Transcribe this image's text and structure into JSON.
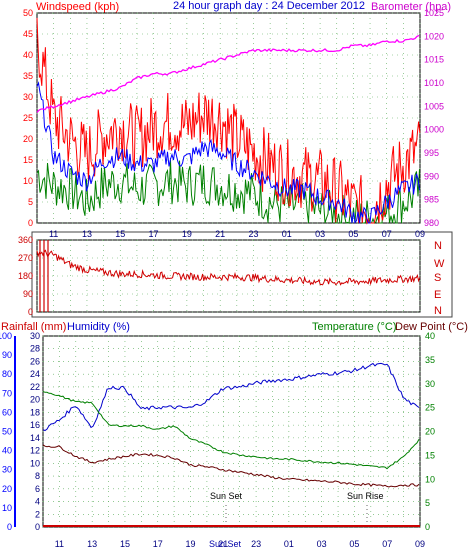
{
  "header": {
    "windspeed_label": "Windspeed (kph)",
    "title": "24 hour graph day : 24 December 2012",
    "barometer_label": "Barometer (hpa)"
  },
  "direction_labels": [
    "N",
    "W",
    "S",
    "E",
    "N"
  ],
  "bottom_header": {
    "rainfall_label": "Rainfall (mm)",
    "humidity_label": "Humidity (%)",
    "temperature_label": "Temperature (°C)",
    "dewpoint_label": "Dew Point (°C)"
  },
  "annotations": {
    "sunset": "Sun Set",
    "sunrise": "Sun Rise"
  },
  "colors": {
    "wind": "#ff0000",
    "gust": "#ff0000",
    "wind_avg": "#0000ff",
    "wind_low": "#008000",
    "barometer": "#ff00ff",
    "direction": "#d00000",
    "humidity": "#0000cc",
    "temperature": "#008000",
    "dewpoint": "#660000",
    "rainfall": "#cc0000",
    "rain_axis": "#0000ff",
    "temp_axis": "#008000"
  },
  "chart_data": [
    {
      "type": "line",
      "title": "24 hour graph day : 24 December 2012",
      "xlabel": "",
      "ylabel": "Windspeed (kph)",
      "y2label": "Barometer (hpa)",
      "ylim": [
        0,
        50
      ],
      "y2lim": [
        980,
        1025
      ],
      "grid": true,
      "x": [
        "10",
        "11",
        "12",
        "13",
        "14",
        "15",
        "16",
        "17",
        "18",
        "19",
        "20",
        "21",
        "22",
        "23",
        "00",
        "01",
        "02",
        "03",
        "04",
        "05",
        "06",
        "07",
        "08",
        "09"
      ],
      "tick_labels": [
        "11",
        "13",
        "15",
        "17",
        "19",
        "21",
        "23",
        "01",
        "03",
        "05",
        "07",
        "09"
      ],
      "series": [
        {
          "name": "Windspeed (kph)",
          "axis": "left",
          "values": [
            44,
            25,
            20,
            16,
            21,
            23,
            20,
            23,
            24,
            23,
            26,
            25,
            20,
            17,
            14,
            12,
            11,
            10,
            8,
            4,
            3,
            9,
            14,
            18
          ]
        },
        {
          "name": "",
          "axis": "left",
          "values": [
            33,
            16,
            12,
            10,
            15,
            16,
            14,
            14,
            16,
            15,
            18,
            17,
            14,
            12,
            10,
            8,
            8,
            6,
            5,
            2,
            1,
            5,
            8,
            10
          ]
        },
        {
          "name": "",
          "axis": "left",
          "values": [
            12,
            9,
            8,
            5,
            9,
            10,
            8,
            9,
            10,
            9,
            10,
            9,
            8,
            7,
            5,
            4,
            4,
            3,
            2,
            1,
            1,
            2,
            5,
            8
          ]
        },
        {
          "name": "Barometer (hpa)",
          "axis": "right",
          "values": [
            1004,
            1005,
            1006,
            1007,
            1008,
            1009,
            1011,
            1012,
            1012,
            1013,
            1014,
            1015,
            1016,
            1017,
            1017,
            1017,
            1017,
            1017,
            1017,
            1018,
            1018,
            1019,
            1019,
            1020
          ]
        }
      ]
    },
    {
      "type": "line",
      "ylabel": "",
      "ylim": [
        0,
        360
      ],
      "yticks": [
        0,
        90,
        180,
        270,
        360
      ],
      "labels": [
        "N",
        "W",
        "S",
        "E",
        "N"
      ],
      "x": [
        "10",
        "11",
        "12",
        "13",
        "14",
        "15",
        "16",
        "17",
        "18",
        "19",
        "20",
        "21",
        "22",
        "23",
        "00",
        "01",
        "02",
        "03",
        "04",
        "05",
        "06",
        "07",
        "08",
        "09"
      ],
      "series": [
        {
          "name": "",
          "values": [
            300,
            285,
            235,
            210,
            200,
            190,
            190,
            185,
            180,
            178,
            175,
            176,
            175,
            172,
            165,
            160,
            155,
            150,
            150,
            152,
            155,
            160,
            165,
            168
          ]
        }
      ]
    },
    {
      "type": "line",
      "xlabel": "",
      "ylim": [
        0,
        30
      ],
      "y_rain_lim": [
        0,
        100
      ],
      "y_temp_lim": [
        0,
        40
      ],
      "grid": true,
      "x": [
        "10",
        "11",
        "12",
        "13",
        "14",
        "15",
        "16",
        "17",
        "18",
        "19",
        "20",
        "21",
        "22",
        "23",
        "00",
        "01",
        "02",
        "03",
        "04",
        "05",
        "06",
        "07",
        "08",
        "09"
      ],
      "tick_labels": [
        "11",
        "13",
        "15",
        "17",
        "19",
        "21",
        "23",
        "01",
        "03",
        "05",
        "07",
        "09"
      ],
      "series": [
        {
          "name": "Humidity (%)",
          "axis": "humidity",
          "values": [
            15.2,
            16.8,
            19.2,
            15.5,
            22.0,
            21.8,
            18.5,
            18.8,
            18.8,
            18.7,
            19.8,
            21.8,
            22.0,
            22.6,
            23.0,
            23.2,
            23.6,
            24.0,
            24.2,
            24.6,
            25.4,
            25.5,
            20.2,
            18.5
          ]
        },
        {
          "name": "Temperature (°C)",
          "axis": "temp",
          "values": [
            28.5,
            27.5,
            26.2,
            26.0,
            21.3,
            21.2,
            21.2,
            20.4,
            21.2,
            18.5,
            17.2,
            15.7,
            15.1,
            14.7,
            14.3,
            14.2,
            13.9,
            13.6,
            13.4,
            13.1,
            12.7,
            12.4,
            14.7,
            18.5
          ]
        },
        {
          "name": "Dew Point (°C)",
          "axis": "temp",
          "values": [
            17.0,
            16.8,
            14.8,
            13.5,
            14.2,
            14.8,
            15.3,
            15.0,
            14.5,
            13.0,
            12.6,
            12.0,
            11.5,
            11.0,
            10.4,
            10.0,
            9.8,
            9.6,
            9.4,
            9.0,
            8.8,
            8.5,
            8.8,
            8.8
          ]
        },
        {
          "name": "Rainfall (mm)",
          "axis": "rain",
          "values": [
            0,
            0,
            0,
            0,
            0,
            0,
            0,
            0,
            0,
            0,
            0,
            0,
            0,
            0,
            0,
            0,
            0,
            0,
            0,
            0,
            0,
            0,
            0,
            0
          ]
        }
      ]
    }
  ],
  "axes": {
    "wind_left_ticks": [
      0,
      5,
      10,
      15,
      20,
      25,
      30,
      35,
      40,
      45,
      50
    ],
    "baro_right_ticks": [
      980,
      985,
      990,
      995,
      1000,
      1005,
      1010,
      1015,
      1020,
      1025
    ],
    "rain_ticks": [
      0,
      10,
      20,
      30,
      40,
      50,
      60,
      70,
      80,
      90,
      100
    ],
    "humidity_ticks": [
      0,
      2,
      4,
      6,
      8,
      10,
      12,
      14,
      16,
      18,
      20,
      22,
      24,
      26,
      28,
      30
    ],
    "temp_ticks": [
      0,
      5,
      10,
      15,
      20,
      25,
      30,
      35,
      40
    ],
    "dir_ticks": [
      0,
      90,
      180,
      270,
      360
    ]
  }
}
